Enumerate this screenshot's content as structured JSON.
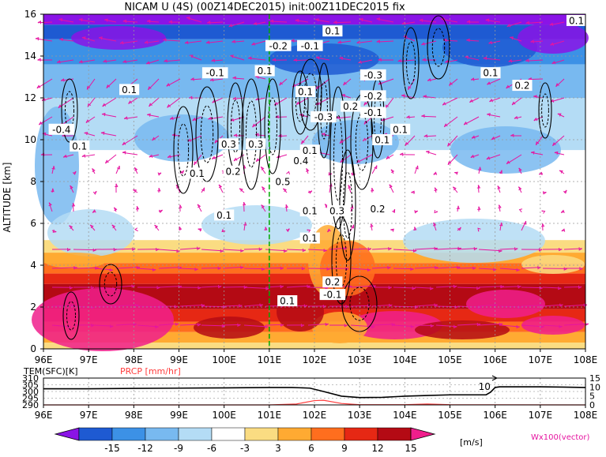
{
  "title": "NICAM U (4S) (00Z14DEC2015) init:00Z11DEC2015 fix",
  "colors": {
    "palette": [
      "#8a14e6",
      "#1e5ad2",
      "#3c91e6",
      "#78b9f0",
      "#b4dcf5",
      "#ffffff",
      "#fadc82",
      "#ffaa32",
      "#ff6e1e",
      "#e62814",
      "#b40a14",
      "#f01e8c"
    ],
    "contour": "#000000",
    "vector": "#e614a0",
    "reference_line": "#00aa00",
    "precip_line": "#ff3c3c"
  },
  "chart_data": [
    {
      "type": "heatmap",
      "name": "U wind cross-section",
      "ylabel": "ALTITUDE [km]",
      "xlabel": "",
      "x_ticks": [
        "96E",
        "97E",
        "98E",
        "99E",
        "100E",
        "101E",
        "102E",
        "103E",
        "104E",
        "105E",
        "106E",
        "107E",
        "108E"
      ],
      "y_ticks": [
        "0",
        "2",
        "4",
        "6",
        "8",
        "10",
        "12",
        "14",
        "16"
      ],
      "xlim": [
        96,
        108
      ],
      "ylim": [
        0,
        16
      ],
      "grid": true,
      "reference_line_x": 101,
      "u_bands": [
        {
          "from": 15.5,
          "to": 16,
          "level": 0
        },
        {
          "from": 14.8,
          "to": 15.5,
          "level": 1
        },
        {
          "from": 13.6,
          "to": 14.8,
          "level": 2
        },
        {
          "from": 12,
          "to": 13.6,
          "level": 3
        },
        {
          "from": 9.5,
          "to": 12,
          "level": 4
        },
        {
          "from": 5.2,
          "to": 9.5,
          "level": 5
        },
        {
          "from": 4.6,
          "to": 5.2,
          "level": 6
        },
        {
          "from": 4.1,
          "to": 4.6,
          "level": 7
        },
        {
          "from": 3.6,
          "to": 4.1,
          "level": 8
        },
        {
          "from": 3.1,
          "to": 3.6,
          "level": 9
        },
        {
          "from": 1.9,
          "to": 3.1,
          "level": 10
        },
        {
          "from": 1.3,
          "to": 1.9,
          "level": 9
        },
        {
          "from": 0.8,
          "to": 1.3,
          "level": 8
        },
        {
          "from": 0.3,
          "to": 0.8,
          "level": 7
        },
        {
          "from": 0,
          "to": 0.3,
          "level": 6
        }
      ],
      "contour_labels": [
        {
          "x": 96.4,
          "y": 10.5,
          "text": "-0.4"
        },
        {
          "x": 96.8,
          "y": 9.7,
          "text": "0.1"
        },
        {
          "x": 97.9,
          "y": 12.4,
          "text": "0.1"
        },
        {
          "x": 99.8,
          "y": 13.2,
          "text": "-0.1"
        },
        {
          "x": 100.1,
          "y": 9.8,
          "text": "0.3"
        },
        {
          "x": 99.4,
          "y": 8.4,
          "text": "0.1"
        },
        {
          "x": 100.2,
          "y": 8.5,
          "text": "0.2"
        },
        {
          "x": 100.7,
          "y": 9.8,
          "text": "0.3"
        },
        {
          "x": 100.0,
          "y": 6.4,
          "text": "0.1"
        },
        {
          "x": 100.9,
          "y": 13.3,
          "text": "0.1"
        },
        {
          "x": 101.8,
          "y": 12.3,
          "text": "0.1"
        },
        {
          "x": 101.2,
          "y": 14.5,
          "text": "-0.2"
        },
        {
          "x": 101.9,
          "y": 14.5,
          "text": "-0.1"
        },
        {
          "x": 102.4,
          "y": 15.2,
          "text": "0.1"
        },
        {
          "x": 102.2,
          "y": 11.1,
          "text": "-0.3"
        },
        {
          "x": 101.9,
          "y": 9.5,
          "text": "0.1"
        },
        {
          "x": 101.7,
          "y": 9.0,
          "text": "0.4"
        },
        {
          "x": 101.3,
          "y": 8.0,
          "text": "0.5"
        },
        {
          "x": 101.9,
          "y": 6.6,
          "text": "0.1"
        },
        {
          "x": 102.5,
          "y": 6.6,
          "text": "0.3"
        },
        {
          "x": 101.9,
          "y": 5.3,
          "text": "0.1"
        },
        {
          "x": 102.8,
          "y": 11.6,
          "text": "0.2"
        },
        {
          "x": 103.3,
          "y": 13.1,
          "text": "-0.3"
        },
        {
          "x": 103.3,
          "y": 12.1,
          "text": "-0.2"
        },
        {
          "x": 103.3,
          "y": 11.3,
          "text": "-0.1"
        },
        {
          "x": 103.9,
          "y": 10.5,
          "text": "0.1"
        },
        {
          "x": 103.5,
          "y": 10.0,
          "text": "0.1"
        },
        {
          "x": 103.4,
          "y": 6.7,
          "text": "0.2"
        },
        {
          "x": 102.4,
          "y": 3.2,
          "text": "0.2"
        },
        {
          "x": 102.4,
          "y": 2.6,
          "text": "-0.1"
        },
        {
          "x": 101.4,
          "y": 2.3,
          "text": "0.1"
        },
        {
          "x": 105.9,
          "y": 13.2,
          "text": "0.1"
        },
        {
          "x": 106.6,
          "y": 12.6,
          "text": "0.2"
        },
        {
          "x": 107.8,
          "y": 15.7,
          "text": "0.1"
        }
      ]
    },
    {
      "type": "line",
      "name": "surface series",
      "x_ticks": [
        "96E",
        "97E",
        "98E",
        "99E",
        "100E",
        "101E",
        "102E",
        "103E",
        "104E",
        "105E",
        "106E",
        "107E",
        "108E"
      ],
      "left_axis_label": "TEM(SFC)[K]",
      "right_axis_label": "PRCP [mm/hr]",
      "left_ticks": [
        "310",
        "305",
        "300",
        "295",
        "290"
      ],
      "right_ticks": [
        "15",
        "10",
        "5",
        "0"
      ],
      "left_ylim": [
        290,
        310
      ],
      "right_ylim": [
        0,
        15
      ],
      "series": [
        {
          "name": "TEM(SFC)[K]",
          "axis": "left",
          "x": [
            96,
            97,
            98,
            99,
            100,
            101,
            101.5,
            101.9,
            102.2,
            102.6,
            103,
            103.5,
            104,
            104.5,
            105,
            105.5,
            105.8,
            105.9,
            106,
            106.1,
            106.5,
            107,
            107.5,
            108
          ],
          "values": [
            302,
            302,
            302.3,
            302.5,
            302.7,
            303,
            303,
            302.5,
            300,
            296.5,
            295.5,
            295.6,
            296.5,
            297,
            297.5,
            297.5,
            297.5,
            299.5,
            303,
            303.5,
            303.5,
            303.5,
            303.3,
            303
          ]
        },
        {
          "name": "PRCP [mm/hr]",
          "axis": "right",
          "x": [
            96,
            101,
            101.6,
            102,
            102.2,
            102.6,
            103,
            104,
            104.5,
            105,
            108
          ],
          "values": [
            0,
            0,
            0.5,
            2.4,
            2.6,
            0.8,
            0.1,
            0.1,
            0.5,
            0.1,
            0
          ]
        }
      ],
      "annotations": [
        {
          "x": 105.9,
          "y": 303.5,
          "text": "10"
        }
      ]
    }
  ],
  "colorbar": {
    "ticks": [
      "-15",
      "-12",
      "-9",
      "-6",
      "-3",
      "3",
      "6",
      "9",
      "12",
      "15"
    ],
    "unit": "[m/s]",
    "vector_note": "Wx100(vector)"
  }
}
